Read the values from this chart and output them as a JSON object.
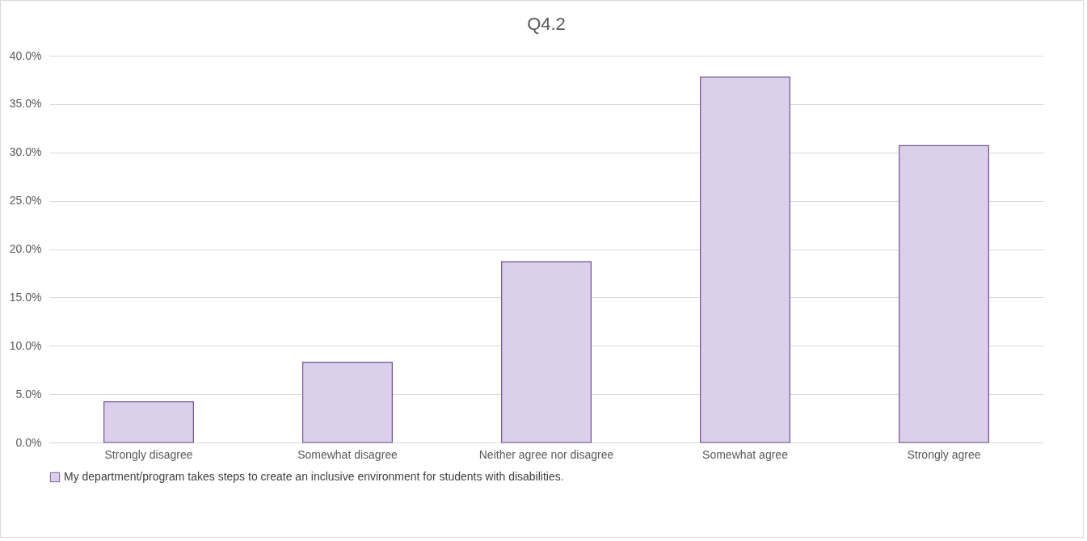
{
  "chart_data": {
    "type": "bar",
    "title": "Q4.2",
    "categories": [
      "Strongly disagree",
      "Somewhat disagree",
      "Neither agree nor disagree",
      "Somewhat agree",
      "Strongly agree"
    ],
    "series": [
      {
        "name": "My department/program takes steps to create an inclusive environment for students with disabilities.",
        "color": "#dccfec",
        "values": [
          4.2,
          8.3,
          18.7,
          37.8,
          30.7
        ]
      }
    ],
    "ylim": [
      0,
      40
    ],
    "yticks": [
      {
        "value": 0,
        "label": "0.0%"
      },
      {
        "value": 5,
        "label": "5.0%"
      },
      {
        "value": 10,
        "label": "10.0%"
      },
      {
        "value": 15,
        "label": "15.0%"
      },
      {
        "value": 20,
        "label": "20.0%"
      },
      {
        "value": 25,
        "label": "25.0%"
      },
      {
        "value": 30,
        "label": "30.0%"
      },
      {
        "value": 35,
        "label": "35.0%"
      },
      {
        "value": 40,
        "label": "40.0%"
      }
    ],
    "grid": "y",
    "legend": "bottom"
  }
}
